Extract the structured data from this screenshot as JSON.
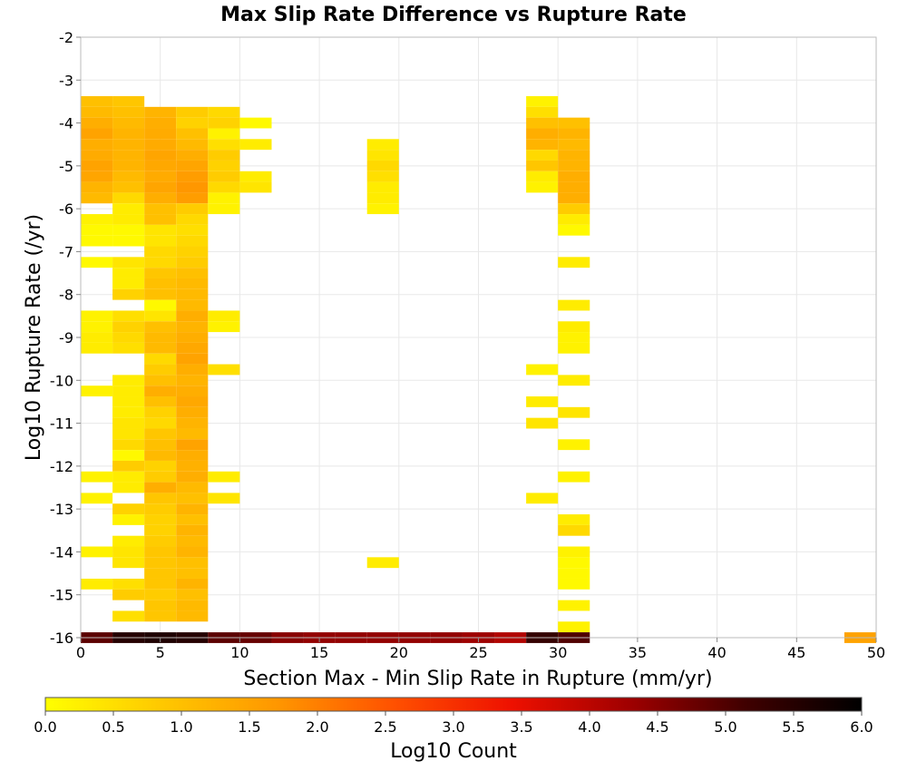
{
  "chart_data": {
    "type": "heatmap",
    "title": "Max Slip Rate Difference vs Rupture Rate",
    "xlabel": "Section Max - Min Slip Rate in Rupture (mm/yr)",
    "ylabel": "Log10 Rupture Rate (/yr)",
    "xlim": [
      0,
      50
    ],
    "ylim": [
      -16,
      -2
    ],
    "x_ticks": [
      "0",
      "5",
      "10",
      "15",
      "20",
      "25",
      "30",
      "35",
      "40",
      "45",
      "50"
    ],
    "y_ticks": [
      "-2",
      "-3",
      "-4",
      "-5",
      "-6",
      "-7",
      "-8",
      "-9",
      "-10",
      "-11",
      "-12",
      "-13",
      "-14",
      "-15",
      "-16"
    ],
    "bin_width_x": 2,
    "bin_height_y": 0.25,
    "grid": true,
    "colorbar": {
      "label": "Log10 Count",
      "range": [
        0,
        6
      ],
      "ticks": [
        "0.0",
        "0.5",
        "1.0",
        "1.5",
        "2.0",
        "2.5",
        "3.0",
        "3.5",
        "4.0",
        "4.5",
        "5.0",
        "5.5",
        "6.0"
      ],
      "colors": [
        "#ffff00",
        "#ffc800",
        "#ff9600",
        "#ff5000",
        "#ee1000",
        "#a00000",
        "#400000",
        "#000000"
      ]
    },
    "columns": [
      {
        "x": 0,
        "cells": [
          [
            -3.5,
            1.0
          ],
          [
            -3.75,
            1.1
          ],
          [
            -4.0,
            1.3
          ],
          [
            -4.25,
            1.5
          ],
          [
            -4.5,
            1.3
          ],
          [
            -4.75,
            1.35
          ],
          [
            -5.0,
            1.5
          ],
          [
            -5.25,
            1.45
          ],
          [
            -5.5,
            1.2
          ],
          [
            -5.75,
            1.1
          ],
          [
            -6.25,
            0.2
          ],
          [
            -6.5,
            0.1
          ],
          [
            -6.75,
            0.1
          ],
          [
            -7.25,
            0.1
          ],
          [
            -8.5,
            0.2
          ],
          [
            -8.75,
            0.2
          ],
          [
            -9.0,
            0.3
          ],
          [
            -9.25,
            0.3
          ],
          [
            -10.25,
            0.2
          ],
          [
            -12.25,
            0.2
          ],
          [
            -12.75,
            0.2
          ],
          [
            -14.0,
            0.2
          ],
          [
            -14.75,
            0.3
          ],
          [
            -16.0,
            4.9
          ]
        ]
      },
      {
        "x": 2,
        "cells": [
          [
            -3.5,
            0.9
          ],
          [
            -3.75,
            1.0
          ],
          [
            -4.0,
            1.1
          ],
          [
            -4.25,
            1.2
          ],
          [
            -4.5,
            1.2
          ],
          [
            -4.75,
            1.2
          ],
          [
            -5.0,
            1.2
          ],
          [
            -5.25,
            1.1
          ],
          [
            -5.5,
            1.0
          ],
          [
            -5.75,
            0.6
          ],
          [
            -6.0,
            0.3
          ],
          [
            -6.25,
            0.3
          ],
          [
            -6.5,
            0.1
          ],
          [
            -6.75,
            0.1
          ],
          [
            -7.25,
            0.4
          ],
          [
            -7.5,
            0.3
          ],
          [
            -7.75,
            0.3
          ],
          [
            -8.0,
            0.7
          ],
          [
            -8.5,
            0.5
          ],
          [
            -8.75,
            0.7
          ],
          [
            -9.0,
            0.6
          ],
          [
            -9.25,
            0.5
          ],
          [
            -10.0,
            0.3
          ],
          [
            -10.25,
            0.3
          ],
          [
            -10.5,
            0.3
          ],
          [
            -10.75,
            0.3
          ],
          [
            -11.0,
            0.4
          ],
          [
            -11.25,
            0.4
          ],
          [
            -11.5,
            0.6
          ],
          [
            -11.75,
            0.1
          ],
          [
            -12.0,
            0.8
          ],
          [
            -12.25,
            0.3
          ],
          [
            -12.5,
            0.3
          ],
          [
            -13.0,
            0.7
          ],
          [
            -13.25,
            0.2
          ],
          [
            -13.75,
            0.3
          ],
          [
            -14.0,
            0.4
          ],
          [
            -14.25,
            0.4
          ],
          [
            -14.75,
            0.5
          ],
          [
            -15.0,
            0.8
          ],
          [
            -15.5,
            0.5
          ],
          [
            -16.0,
            5.5
          ]
        ]
      },
      {
        "x": 4,
        "cells": [
          [
            -3.75,
            1.2
          ],
          [
            -4.0,
            1.3
          ],
          [
            -4.25,
            1.35
          ],
          [
            -4.5,
            1.35
          ],
          [
            -4.75,
            1.45
          ],
          [
            -5.0,
            1.4
          ],
          [
            -5.25,
            1.35
          ],
          [
            -5.5,
            1.45
          ],
          [
            -5.75,
            1.3
          ],
          [
            -6.0,
            1.0
          ],
          [
            -6.25,
            1.0
          ],
          [
            -6.5,
            0.4
          ],
          [
            -6.75,
            0.4
          ],
          [
            -7.0,
            0.6
          ],
          [
            -7.25,
            0.6
          ],
          [
            -7.5,
            0.9
          ],
          [
            -7.75,
            1.0
          ],
          [
            -8.0,
            1.0
          ],
          [
            -8.25,
            0.1
          ],
          [
            -8.5,
            0.4
          ],
          [
            -8.75,
            1.0
          ],
          [
            -9.0,
            1.1
          ],
          [
            -9.25,
            1.1
          ],
          [
            -9.5,
            0.6
          ],
          [
            -9.75,
            0.8
          ],
          [
            -10.0,
            1.0
          ],
          [
            -10.25,
            1.3
          ],
          [
            -10.5,
            1.0
          ],
          [
            -10.75,
            0.7
          ],
          [
            -11.0,
            0.6
          ],
          [
            -11.25,
            0.9
          ],
          [
            -11.5,
            1.0
          ],
          [
            -11.75,
            1.1
          ],
          [
            -12.0,
            0.7
          ],
          [
            -12.25,
            0.8
          ],
          [
            -12.5,
            1.3
          ],
          [
            -12.75,
            0.9
          ],
          [
            -13.0,
            0.8
          ],
          [
            -13.25,
            0.7
          ],
          [
            -13.5,
            0.7
          ],
          [
            -13.75,
            0.8
          ],
          [
            -14.0,
            0.9
          ],
          [
            -14.25,
            0.9
          ],
          [
            -14.5,
            0.9
          ],
          [
            -14.75,
            0.9
          ],
          [
            -15.0,
            0.8
          ],
          [
            -15.25,
            0.9
          ],
          [
            -15.5,
            0.9
          ],
          [
            -16.0,
            5.6
          ]
        ]
      },
      {
        "x": 6,
        "cells": [
          [
            -3.75,
            0.8
          ],
          [
            -4.0,
            0.7
          ],
          [
            -4.25,
            1.0
          ],
          [
            -4.5,
            1.1
          ],
          [
            -4.75,
            1.3
          ],
          [
            -5.0,
            1.45
          ],
          [
            -5.25,
            1.6
          ],
          [
            -5.5,
            1.7
          ],
          [
            -5.75,
            1.6
          ],
          [
            -6.0,
            0.8
          ],
          [
            -6.25,
            0.6
          ],
          [
            -6.5,
            0.5
          ],
          [
            -6.75,
            0.6
          ],
          [
            -7.0,
            0.7
          ],
          [
            -7.25,
            0.8
          ],
          [
            -7.5,
            1.0
          ],
          [
            -7.75,
            1.1
          ],
          [
            -8.0,
            1.1
          ],
          [
            -8.25,
            1.1
          ],
          [
            -8.5,
            1.3
          ],
          [
            -8.75,
            1.2
          ],
          [
            -9.0,
            1.3
          ],
          [
            -9.25,
            1.4
          ],
          [
            -9.5,
            1.5
          ],
          [
            -9.75,
            1.3
          ],
          [
            -10.0,
            1.2
          ],
          [
            -10.25,
            1.3
          ],
          [
            -10.5,
            1.4
          ],
          [
            -10.75,
            1.3
          ],
          [
            -11.0,
            1.2
          ],
          [
            -11.25,
            1.1
          ],
          [
            -11.5,
            1.5
          ],
          [
            -11.75,
            1.3
          ],
          [
            -12.0,
            1.25
          ],
          [
            -12.25,
            1.3
          ],
          [
            -12.5,
            1.1
          ],
          [
            -12.75,
            1.0
          ],
          [
            -13.0,
            1.2
          ],
          [
            -13.25,
            1.0
          ],
          [
            -13.5,
            1.2
          ],
          [
            -13.75,
            1.1
          ],
          [
            -14.0,
            1.2
          ],
          [
            -14.25,
            1.0
          ],
          [
            -14.5,
            1.0
          ],
          [
            -14.75,
            1.2
          ],
          [
            -15.0,
            1.0
          ],
          [
            -15.25,
            1.1
          ],
          [
            -15.5,
            1.1
          ],
          [
            -16.0,
            5.5
          ]
        ]
      },
      {
        "x": 8,
        "cells": [
          [
            -3.75,
            0.6
          ],
          [
            -4.0,
            0.7
          ],
          [
            -4.25,
            0.2
          ],
          [
            -4.5,
            0.5
          ],
          [
            -4.75,
            0.8
          ],
          [
            -5.0,
            0.7
          ],
          [
            -5.25,
            0.8
          ],
          [
            -5.5,
            0.6
          ],
          [
            -5.75,
            0.2
          ],
          [
            -6.0,
            0.2
          ],
          [
            -8.5,
            0.3
          ],
          [
            -8.75,
            0.2
          ],
          [
            -9.75,
            0.5
          ],
          [
            -12.25,
            0.3
          ],
          [
            -12.75,
            0.4
          ],
          [
            -16.0,
            4.9
          ]
        ]
      },
      {
        "x": 10,
        "cells": [
          [
            -4.0,
            0.1
          ],
          [
            -4.5,
            0.3
          ],
          [
            -5.25,
            0.3
          ],
          [
            -5.5,
            0.4
          ],
          [
            -16.0,
            4.8
          ]
        ]
      },
      {
        "x": 12,
        "cells": [
          [
            -16.0,
            4.5
          ]
        ]
      },
      {
        "x": 14,
        "cells": [
          [
            -16.0,
            4.4
          ]
        ]
      },
      {
        "x": 16,
        "cells": [
          [
            -16.0,
            4.4
          ]
        ]
      },
      {
        "x": 18,
        "cells": [
          [
            -4.5,
            0.3
          ],
          [
            -4.75,
            0.4
          ],
          [
            -5.0,
            0.6
          ],
          [
            -5.25,
            0.5
          ],
          [
            -5.5,
            0.3
          ],
          [
            -5.75,
            0.3
          ],
          [
            -6.0,
            0.2
          ],
          [
            -14.25,
            0.3
          ],
          [
            -16.0,
            4.4
          ]
        ]
      },
      {
        "x": 20,
        "cells": [
          [
            -16.0,
            4.4
          ]
        ]
      },
      {
        "x": 22,
        "cells": [
          [
            -16.0,
            4.4
          ]
        ]
      },
      {
        "x": 24,
        "cells": [
          [
            -16.0,
            4.3
          ]
        ]
      },
      {
        "x": 26,
        "cells": [
          [
            -16.0,
            4.1
          ]
        ]
      },
      {
        "x": 28,
        "cells": [
          [
            -3.5,
            0.2
          ],
          [
            -3.75,
            0.5
          ],
          [
            -4.0,
            1.0
          ],
          [
            -4.25,
            1.3
          ],
          [
            -4.5,
            1.2
          ],
          [
            -4.75,
            0.6
          ],
          [
            -5.0,
            0.9
          ],
          [
            -5.25,
            0.3
          ],
          [
            -5.5,
            0.2
          ],
          [
            -9.75,
            0.2
          ],
          [
            -10.5,
            0.3
          ],
          [
            -11.0,
            0.4
          ],
          [
            -12.75,
            0.3
          ],
          [
            -16.0,
            5.3
          ]
        ]
      },
      {
        "x": 30,
        "cells": [
          [
            -4.0,
            1.0
          ],
          [
            -4.25,
            1.2
          ],
          [
            -4.5,
            1.1
          ],
          [
            -4.75,
            1.2
          ],
          [
            -5.0,
            1.2
          ],
          [
            -5.25,
            1.3
          ],
          [
            -5.5,
            1.3
          ],
          [
            -5.75,
            1.3
          ],
          [
            -6.0,
            0.8
          ],
          [
            -6.25,
            0.3
          ],
          [
            -6.5,
            0.1
          ],
          [
            -7.25,
            0.3
          ],
          [
            -8.25,
            0.3
          ],
          [
            -8.75,
            0.3
          ],
          [
            -9.0,
            0.2
          ],
          [
            -9.25,
            0.2
          ],
          [
            -10.0,
            0.3
          ],
          [
            -10.75,
            0.4
          ],
          [
            -11.5,
            0.2
          ],
          [
            -12.25,
            0.2
          ],
          [
            -13.25,
            0.3
          ],
          [
            -13.5,
            0.6
          ],
          [
            -14.0,
            0.2
          ],
          [
            -14.25,
            0.1
          ],
          [
            -14.5,
            0.1
          ],
          [
            -14.75,
            0.1
          ],
          [
            -15.25,
            0.2
          ],
          [
            -15.75,
            0.2
          ],
          [
            -16.0,
            5.0
          ]
        ]
      },
      {
        "x": 48,
        "cells": [
          [
            -16.0,
            1.5
          ]
        ]
      }
    ]
  }
}
